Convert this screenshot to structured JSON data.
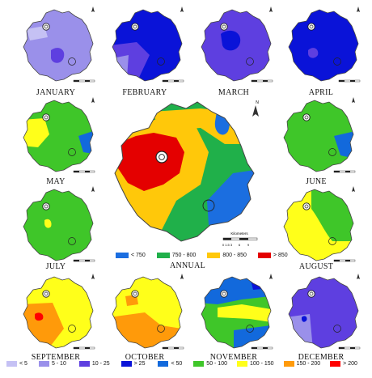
{
  "colors": {
    "lt5": "#c5c1f4",
    "c5_10": "#9a90ea",
    "c10_25": "#5e3fe0",
    "gt25": "#0a13d8",
    "lt50": "#1269dc",
    "c50_100": "#3fc629",
    "c100_150": "#ffff1a",
    "c150_200": "#ff9a0a",
    "gt200": "#ff0000",
    "a_lt750": "#1b6ee0",
    "a_750_800": "#20b04a",
    "a_800_850": "#ffc80a",
    "a_gt850": "#e40000"
  },
  "months": [
    {
      "label": "JANUARY"
    },
    {
      "label": "FEBRUARY"
    },
    {
      "label": "MARCH"
    },
    {
      "label": "APRIL"
    },
    {
      "label": "MAY"
    },
    {
      "label": "JUNE"
    },
    {
      "label": "JULY"
    },
    {
      "label": "AUGUST"
    },
    {
      "label": "SEPTEMBER"
    },
    {
      "label": "OCTOBER"
    },
    {
      "label": "NOVEMBER"
    },
    {
      "label": "DECEMBER"
    }
  ],
  "annual": {
    "label": "ANNUAL",
    "scale_title": "Kilometers",
    "scale_ticks": [
      "0",
      "1.5",
      "3",
      "6",
      "9"
    ],
    "legend": [
      {
        "label": "< 750",
        "color": "#1b6ee0"
      },
      {
        "label": "750 - 800",
        "color": "#20b04a"
      },
      {
        "label": "800 - 850",
        "color": "#ffc80a"
      },
      {
        "label": "> 850",
        "color": "#e40000"
      }
    ]
  },
  "north_label": "N",
  "monthly_legend": [
    {
      "label": "< 5",
      "color": "#c5c1f4"
    },
    {
      "label": "5 - 10",
      "color": "#9a90ea"
    },
    {
      "label": "10 - 25",
      "color": "#5e3fe0"
    },
    {
      "label": "> 25",
      "color": "#0a13d8"
    },
    {
      "label": "< 50",
      "color": "#1269dc"
    },
    {
      "label": "50 - 100",
      "color": "#3fc629"
    },
    {
      "label": "100 - 150",
      "color": "#ffff1a"
    },
    {
      "label": "150 - 200",
      "color": "#ff9a0a"
    },
    {
      "label": "> 200",
      "color": "#ff0000"
    }
  ]
}
